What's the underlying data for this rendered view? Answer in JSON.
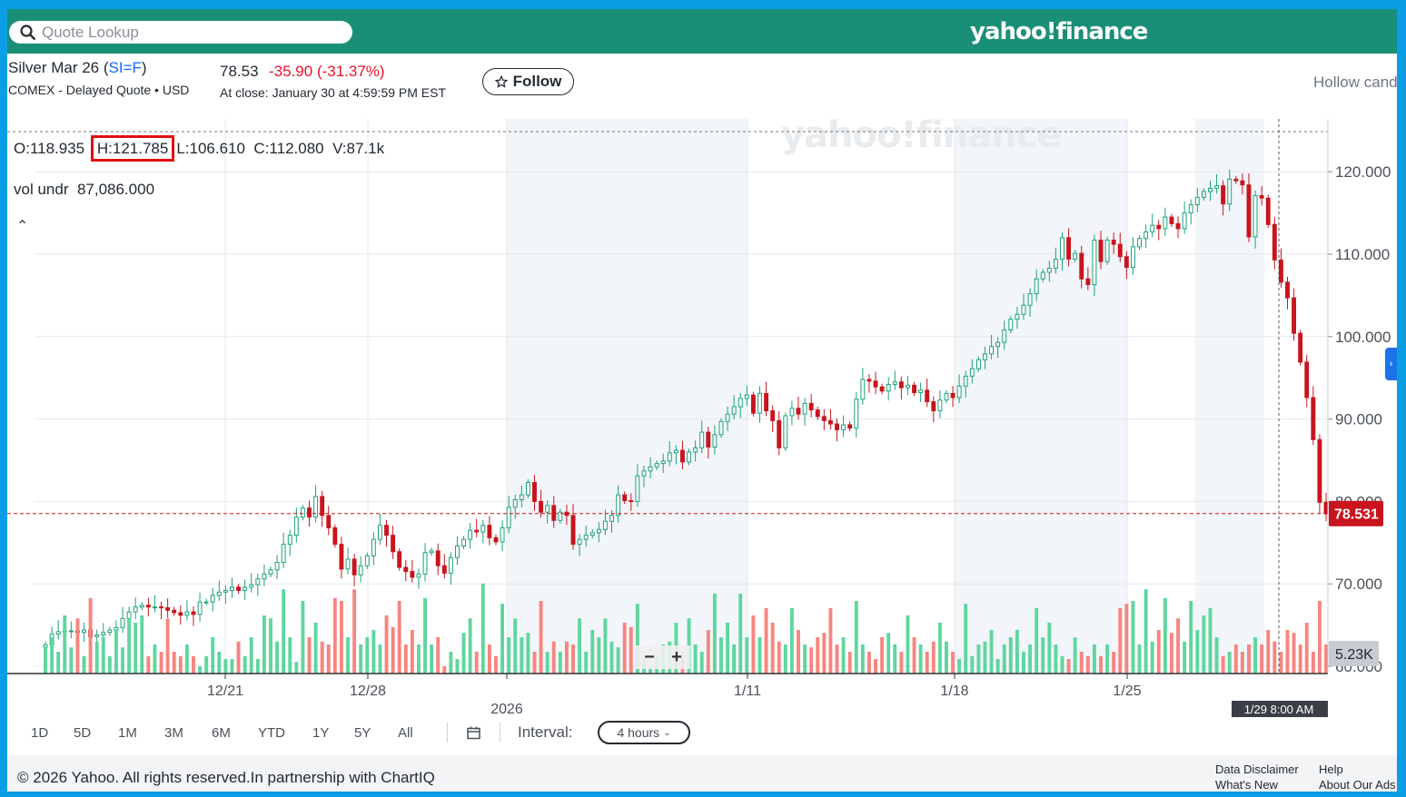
{
  "header": {
    "search_placeholder": "Quote Lookup",
    "brand": "yahoo!finance"
  },
  "quote": {
    "name": "Silver Mar 26",
    "symbol_open": " (",
    "symbol": "SI=F",
    "symbol_close": ")",
    "exchange": "COMEX - Delayed Quote • USD",
    "price": "78.53",
    "change": "-35.90",
    "change_pct": "(-31.37%)",
    "close_time": "At close: January 30 at 4:59:59 PM EST",
    "follow_label": "Follow",
    "chart_style": "Hollow cand"
  },
  "ohlc": {
    "open": "O:118.935",
    "high": "H:121.785",
    "low": "L:106.610",
    "close": "C:112.080",
    "volume": "V:87.1k",
    "vol_label": "vol undr",
    "vol_value": "87,086.000"
  },
  "controls": {
    "ranges": [
      "1D",
      "5D",
      "1M",
      "3M",
      "6M",
      "YTD",
      "1Y",
      "5Y",
      "All"
    ],
    "interval_label": "Interval:",
    "interval_value": "4 hours"
  },
  "footer": {
    "copyright": "© 2026 Yahoo. All rights reserved.In partnership with ChartIQ",
    "links": [
      "Data Disclaimer",
      "Help",
      "What's New",
      "About Our Ads"
    ]
  },
  "colors": {
    "up": "#1ba37c",
    "down": "#c9141d",
    "vol_up": "#5fd69e",
    "vol_down": "#f7857f",
    "brand_bar": "#1a8f77",
    "price_label": "#c9141d"
  },
  "chart_data": {
    "type": "candlestick",
    "interval": "4 hours",
    "y_axis_labels": [
      "120.000",
      "110.000",
      "100.000",
      "90.000",
      "80.000",
      "70.000",
      "60.000"
    ],
    "ylim": [
      60,
      122
    ],
    "x_axis_labels": [
      "12/21",
      "12/28",
      "2026",
      "1/11",
      "1/18",
      "1/25"
    ],
    "current_price_label": "78.531",
    "volume_axis_label": "5.23K",
    "crosshair_label": "1/29 8:00 AM",
    "series": [
      {
        "name": "close",
        "values": [
          62.6,
          63.9,
          64.2,
          64.3,
          64.3,
          64.1,
          64.4,
          63.6,
          63.8,
          64.1,
          64.4,
          64.7,
          65.8,
          66.6,
          67.2,
          67.4,
          67.2,
          67.2,
          67.1,
          66.8,
          66.5,
          66.2,
          66.6,
          66.3,
          67.8,
          67.8,
          68.6,
          69.0,
          69.2,
          69.6,
          69.2,
          69.6,
          69.9,
          70.6,
          71.2,
          71.7,
          72.6,
          74.8,
          75.9,
          78.1,
          79.2,
          78.1,
          80.6,
          78.3,
          76.8,
          74.8,
          71.8,
          73.0,
          71.1,
          72.2,
          73.4,
          75.4,
          77.1,
          75.9,
          73.9,
          72.0,
          71.5,
          70.8,
          71.2,
          73.8,
          74.0,
          72.2,
          71.3,
          73.2,
          74.6,
          75.4,
          76.5,
          76.3,
          77.1,
          75.6,
          75.1,
          76.8,
          79.3,
          80.2,
          80.8,
          82.3,
          80.0,
          78.7,
          79.5,
          77.7,
          78.7,
          78.3,
          74.8,
          75.4,
          75.9,
          76.2,
          76.6,
          77.6,
          78.3,
          80.8,
          80.1,
          80.0,
          83.1,
          83.7,
          84.2,
          84.6,
          84.9,
          85.9,
          86.2,
          84.8,
          86.0,
          86.5,
          88.4,
          86.6,
          88.1,
          89.7,
          90.6,
          91.5,
          92.5,
          92.9,
          90.7,
          93.1,
          91.0,
          89.8,
          86.5,
          90.4,
          91.3,
          90.6,
          91.9,
          91.1,
          90.3,
          89.8,
          89.4,
          88.7,
          89.3,
          88.9,
          92.4,
          94.8,
          94.6,
          93.9,
          93.4,
          94.2,
          94.5,
          93.8,
          94.1,
          93.2,
          93.5,
          92.1,
          91.0,
          92.3,
          93.1,
          92.6,
          94.0,
          95.2,
          96.1,
          97.2,
          97.9,
          98.8,
          99.3,
          100.8,
          102.1,
          102.7,
          103.8,
          105.2,
          107.0,
          107.8,
          108.3,
          109.4,
          112.0,
          109.4,
          110.1,
          107.0,
          106.3,
          111.7,
          109.1,
          111.7,
          111.2,
          109.7,
          108.4,
          110.9,
          111.9,
          112.7,
          113.5,
          113.1,
          114.5,
          113.7,
          113.1,
          115.0,
          116.0,
          116.9,
          117.6,
          118.0,
          118.3,
          116.1,
          119.1,
          118.9,
          118.4,
          112.1,
          117.1,
          116.8,
          113.6,
          109.3,
          106.6,
          104.7,
          100.4,
          96.9,
          92.6,
          87.5,
          79.9,
          78.5
        ]
      },
      {
        "name": "volume",
        "values": [
          18,
          25,
          15,
          40,
          18,
          38,
          12,
          52,
          22,
          25,
          12,
          30,
          18,
          38,
          35,
          40,
          12,
          20,
          15,
          38,
          15,
          12,
          20,
          12,
          5,
          12,
          25,
          15,
          10,
          10,
          22,
          12,
          25,
          10,
          40,
          38,
          22,
          58,
          25,
          8,
          50,
          25,
          35,
          22,
          20,
          52,
          50,
          25,
          58,
          20,
          25,
          30,
          20,
          40,
          32,
          50,
          20,
          30,
          20,
          52,
          20,
          25,
          5,
          15,
          10,
          28,
          38,
          15,
          62,
          20,
          12,
          48,
          25,
          38,
          25,
          28,
          15,
          50,
          15,
          22,
          15,
          22,
          20,
          38,
          15,
          30,
          25,
          38,
          22,
          18,
          35,
          32,
          48,
          10,
          5,
          12,
          20,
          22,
          35,
          15,
          38,
          20,
          15,
          30,
          55,
          25,
          35,
          20,
          55,
          25,
          40,
          25,
          45,
          35,
          22,
          20,
          45,
          30,
          20,
          18,
          25,
          28,
          45,
          20,
          25,
          15,
          50,
          20,
          15,
          10,
          25,
          28,
          20,
          15,
          40,
          25,
          20,
          15,
          22,
          35,
          22,
          15,
          10,
          48,
          12,
          20,
          22,
          30,
          10,
          20,
          25,
          30,
          15,
          20,
          45,
          25,
          35,
          20,
          12,
          10,
          25,
          15,
          12,
          20,
          12,
          20,
          15,
          45,
          48,
          50,
          20,
          58,
          22,
          30,
          52,
          28,
          38,
          22,
          50,
          30,
          40,
          45,
          25,
          12,
          15,
          20,
          15,
          20,
          25,
          20,
          30,
          22,
          15,
          30,
          28,
          20,
          35,
          15,
          50,
          20,
          15,
          30,
          65,
          60,
          35,
          70,
          62,
          15
        ]
      }
    ]
  }
}
